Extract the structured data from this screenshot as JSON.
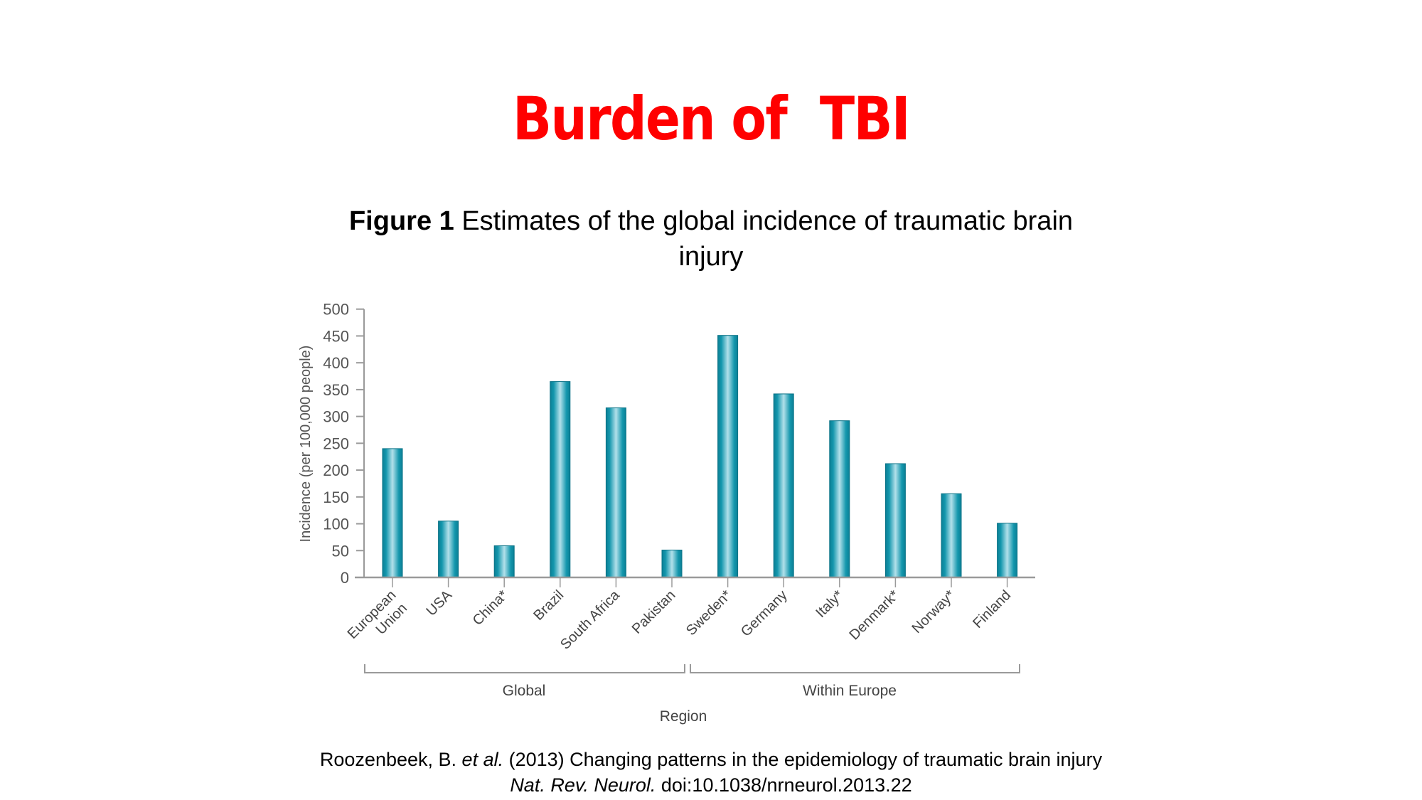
{
  "slide": {
    "title": "Burden of  TBI",
    "title_color": "#FF0000"
  },
  "figure": {
    "label": "Figure 1",
    "caption_line1": " Estimates of the global incidence of traumatic brain",
    "caption_line2": "injury"
  },
  "citation": {
    "authors": "Roozenbeek, B. ",
    "et_al": "et al.",
    "rest_line1": " (2013) Changing patterns in the epidemiology of traumatic brain injury",
    "journal": "Nat. Rev. Neurol.",
    "doi": " doi:10.1038/nrneurol.2013.22"
  },
  "chart_data": {
    "type": "bar",
    "title": "Estimates of the global incidence of traumatic brain injury",
    "xlabel": "Region",
    "ylabel": "Incidence (per 100,000 people)",
    "ylim": [
      0,
      500
    ],
    "yticks": [
      0,
      50,
      100,
      150,
      200,
      250,
      300,
      350,
      400,
      450,
      500
    ],
    "grid": false,
    "legend": null,
    "bar_color": "#0E8FA6",
    "categories": [
      "European Union",
      "USA",
      "China*",
      "Brazil",
      "South Africa",
      "Pakistan",
      "Sweden*",
      "Germany",
      "Italy*",
      "Denmark*",
      "Norway*",
      "Finland"
    ],
    "category_label_lines": [
      [
        "European",
        "Union"
      ],
      [
        "USA"
      ],
      [
        "China*"
      ],
      [
        "Brazil"
      ],
      [
        "South Africa"
      ],
      [
        "Pakistan"
      ],
      [
        "Sweden*"
      ],
      [
        "Germany"
      ],
      [
        "Italy*"
      ],
      [
        "Denmark*"
      ],
      [
        "Norway*"
      ],
      [
        "Finland"
      ]
    ],
    "values": [
      240,
      105,
      59,
      365,
      316,
      51,
      451,
      342,
      292,
      212,
      156,
      101
    ],
    "groups": [
      {
        "name": "Global",
        "categories": [
          "European Union",
          "USA",
          "China*",
          "Brazil",
          "South Africa",
          "Pakistan"
        ]
      },
      {
        "name": "Within Europe",
        "categories": [
          "Sweden*",
          "Germany",
          "Italy*",
          "Denmark*",
          "Norway*",
          "Finland"
        ]
      }
    ]
  }
}
